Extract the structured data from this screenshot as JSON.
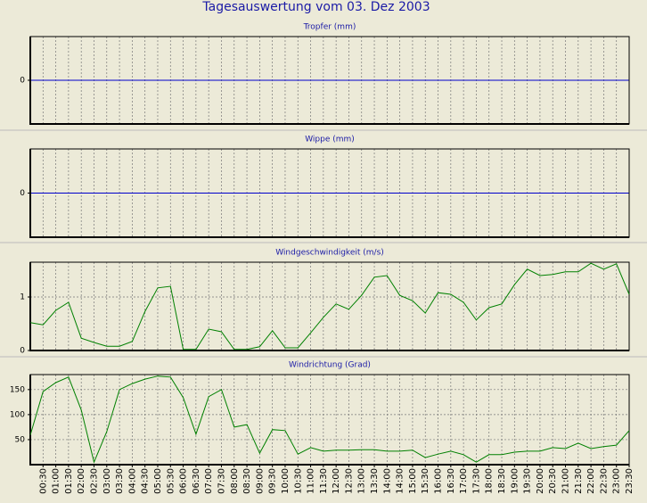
{
  "title": "Tagesauswertung vom 03. Dez 2003",
  "chart_data": [
    {
      "type": "line",
      "title": "Tropfer (mm)",
      "ylim": [
        -1,
        1
      ],
      "yticks": [
        0
      ],
      "zero_line": "#0000cc",
      "grid": true
    },
    {
      "type": "line",
      "title": "Wippe (mm)",
      "ylim": [
        -1,
        1
      ],
      "yticks": [
        0
      ],
      "zero_line": "#0000cc",
      "grid": true
    },
    {
      "type": "line",
      "title": "Windgeschwindigkeit (m/s)",
      "ylim": [
        0,
        1.65
      ],
      "yticks": [
        0,
        1
      ],
      "grid": true,
      "color": "#008000",
      "values": [
        0.52,
        0.48,
        0.75,
        0.9,
        0.23,
        0.15,
        0.08,
        0.08,
        0.17,
        0.73,
        1.17,
        1.2,
        0.02,
        0.02,
        0.4,
        0.35,
        0.02,
        0.02,
        0.07,
        0.37,
        0.05,
        0.05,
        0.33,
        0.62,
        0.87,
        0.77,
        1.03,
        1.37,
        1.4,
        1.03,
        0.93,
        0.7,
        1.08,
        1.05,
        0.9,
        0.57,
        0.8,
        0.87,
        1.23,
        1.52,
        1.4,
        1.42,
        1.47,
        1.47,
        1.63,
        1.52,
        1.62,
        1.05
      ]
    },
    {
      "type": "line",
      "title": "Windrichtung (Grad)",
      "ylim": [
        0,
        180
      ],
      "yticks": [
        50,
        100,
        150
      ],
      "grid": true,
      "color": "#008000",
      "categories": [
        null,
        "00:30",
        "01:00",
        "01:30",
        "02:00",
        "02:30",
        "03:00",
        "03:30",
        "04:00",
        "04:30",
        "05:00",
        "05:30",
        "06:00",
        "06:30",
        "07:00",
        "07:30",
        "08:00",
        "08:30",
        "09:00",
        "09:30",
        "10:00",
        "10:30",
        "11:00",
        "11:30",
        "12:00",
        "12:30",
        "13:00",
        "13:30",
        "14:00",
        "14:30",
        "15:00",
        "15:30",
        "16:00",
        "16:30",
        "17:00",
        "17:30",
        "18:00",
        "18:30",
        "19:00",
        "19:30",
        "20:00",
        "20:30",
        "21:00",
        "21:30",
        "22:00",
        "22:30",
        "23:00",
        "23:30"
      ],
      "values": [
        59,
        146,
        164,
        175,
        109,
        5,
        66,
        150,
        162,
        171,
        177,
        175,
        134,
        61,
        136,
        150,
        75,
        80,
        23,
        70,
        68,
        21,
        34,
        27,
        29,
        29,
        30,
        30,
        27,
        27,
        29,
        14,
        21,
        27,
        20,
        5,
        20,
        20,
        25,
        27,
        27,
        34,
        32,
        43,
        32,
        36,
        39,
        68
      ]
    }
  ]
}
